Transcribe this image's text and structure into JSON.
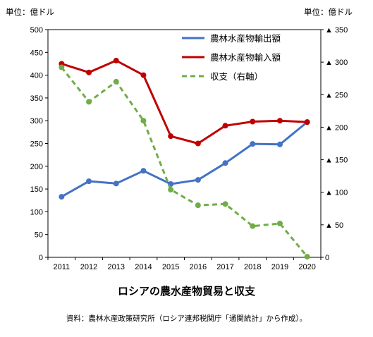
{
  "chart_data": {
    "type": "line",
    "title": "ロシアの農水産物貿易と収支",
    "source": "資料：農林水産政策研究所（ロシア連邦税関庁「通関統計」から作成）。",
    "y_left_unit": "単位：億ドル",
    "y_right_unit": "単位：億ドル",
    "categories": [
      "2011",
      "2012",
      "2013",
      "2014",
      "2015",
      "2016",
      "2017",
      "2018",
      "2019",
      "2020"
    ],
    "y_left": {
      "range": [
        0,
        500
      ],
      "ticks": [
        "0",
        "50",
        "100",
        "150",
        "200",
        "250",
        "300",
        "350",
        "400",
        "450",
        "500"
      ]
    },
    "y_right": {
      "range": [
        0,
        350
      ],
      "ticks": [
        "0",
        "▲ 50",
        "▲ 100",
        "▲ 150",
        "▲ 200",
        "▲ 250",
        "▲ 300",
        "▲ 350"
      ]
    },
    "grid": false,
    "legend_position": "top-right",
    "series": [
      {
        "name": "農林水産物輸出額",
        "axis": "left",
        "color": "#4472C4",
        "style": "solid",
        "values": [
          133,
          167,
          162,
          190,
          161,
          170,
          207,
          249,
          248,
          297
        ]
      },
      {
        "name": "農林水産物輸入額",
        "axis": "left",
        "color": "#C00000",
        "style": "solid",
        "values": [
          425,
          406,
          432,
          400,
          266,
          250,
          289,
          298,
          300,
          297
        ]
      },
      {
        "name": "収支（右軸）",
        "axis": "right",
        "color": "#70AD47",
        "style": "dashed",
        "values": [
          292,
          239,
          270,
          210,
          104,
          80,
          82,
          48,
          52,
          1
        ]
      }
    ]
  }
}
